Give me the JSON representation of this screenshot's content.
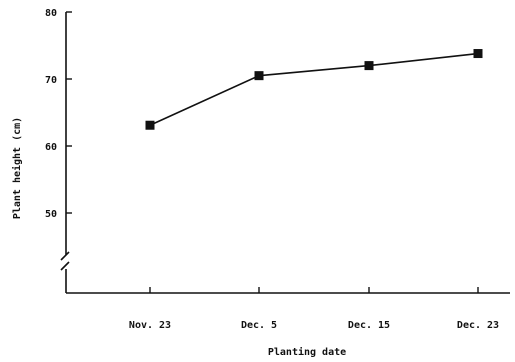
{
  "chart_data": {
    "type": "line",
    "title": "",
    "xlabel": "Planting date",
    "ylabel": "Plant height (cm)",
    "categories": [
      "Nov. 23",
      "Dec. 5",
      "Dec. 15",
      "Dec. 23"
    ],
    "series": [
      {
        "values": [
          63.1,
          70.5,
          72.0,
          73.8
        ]
      }
    ],
    "ylim": [
      50,
      80
    ],
    "yticks": [
      50,
      60,
      70,
      80
    ],
    "axis_break": true,
    "grid": false,
    "legend": "none",
    "marker": "filled-square",
    "line_color": "#111111"
  }
}
